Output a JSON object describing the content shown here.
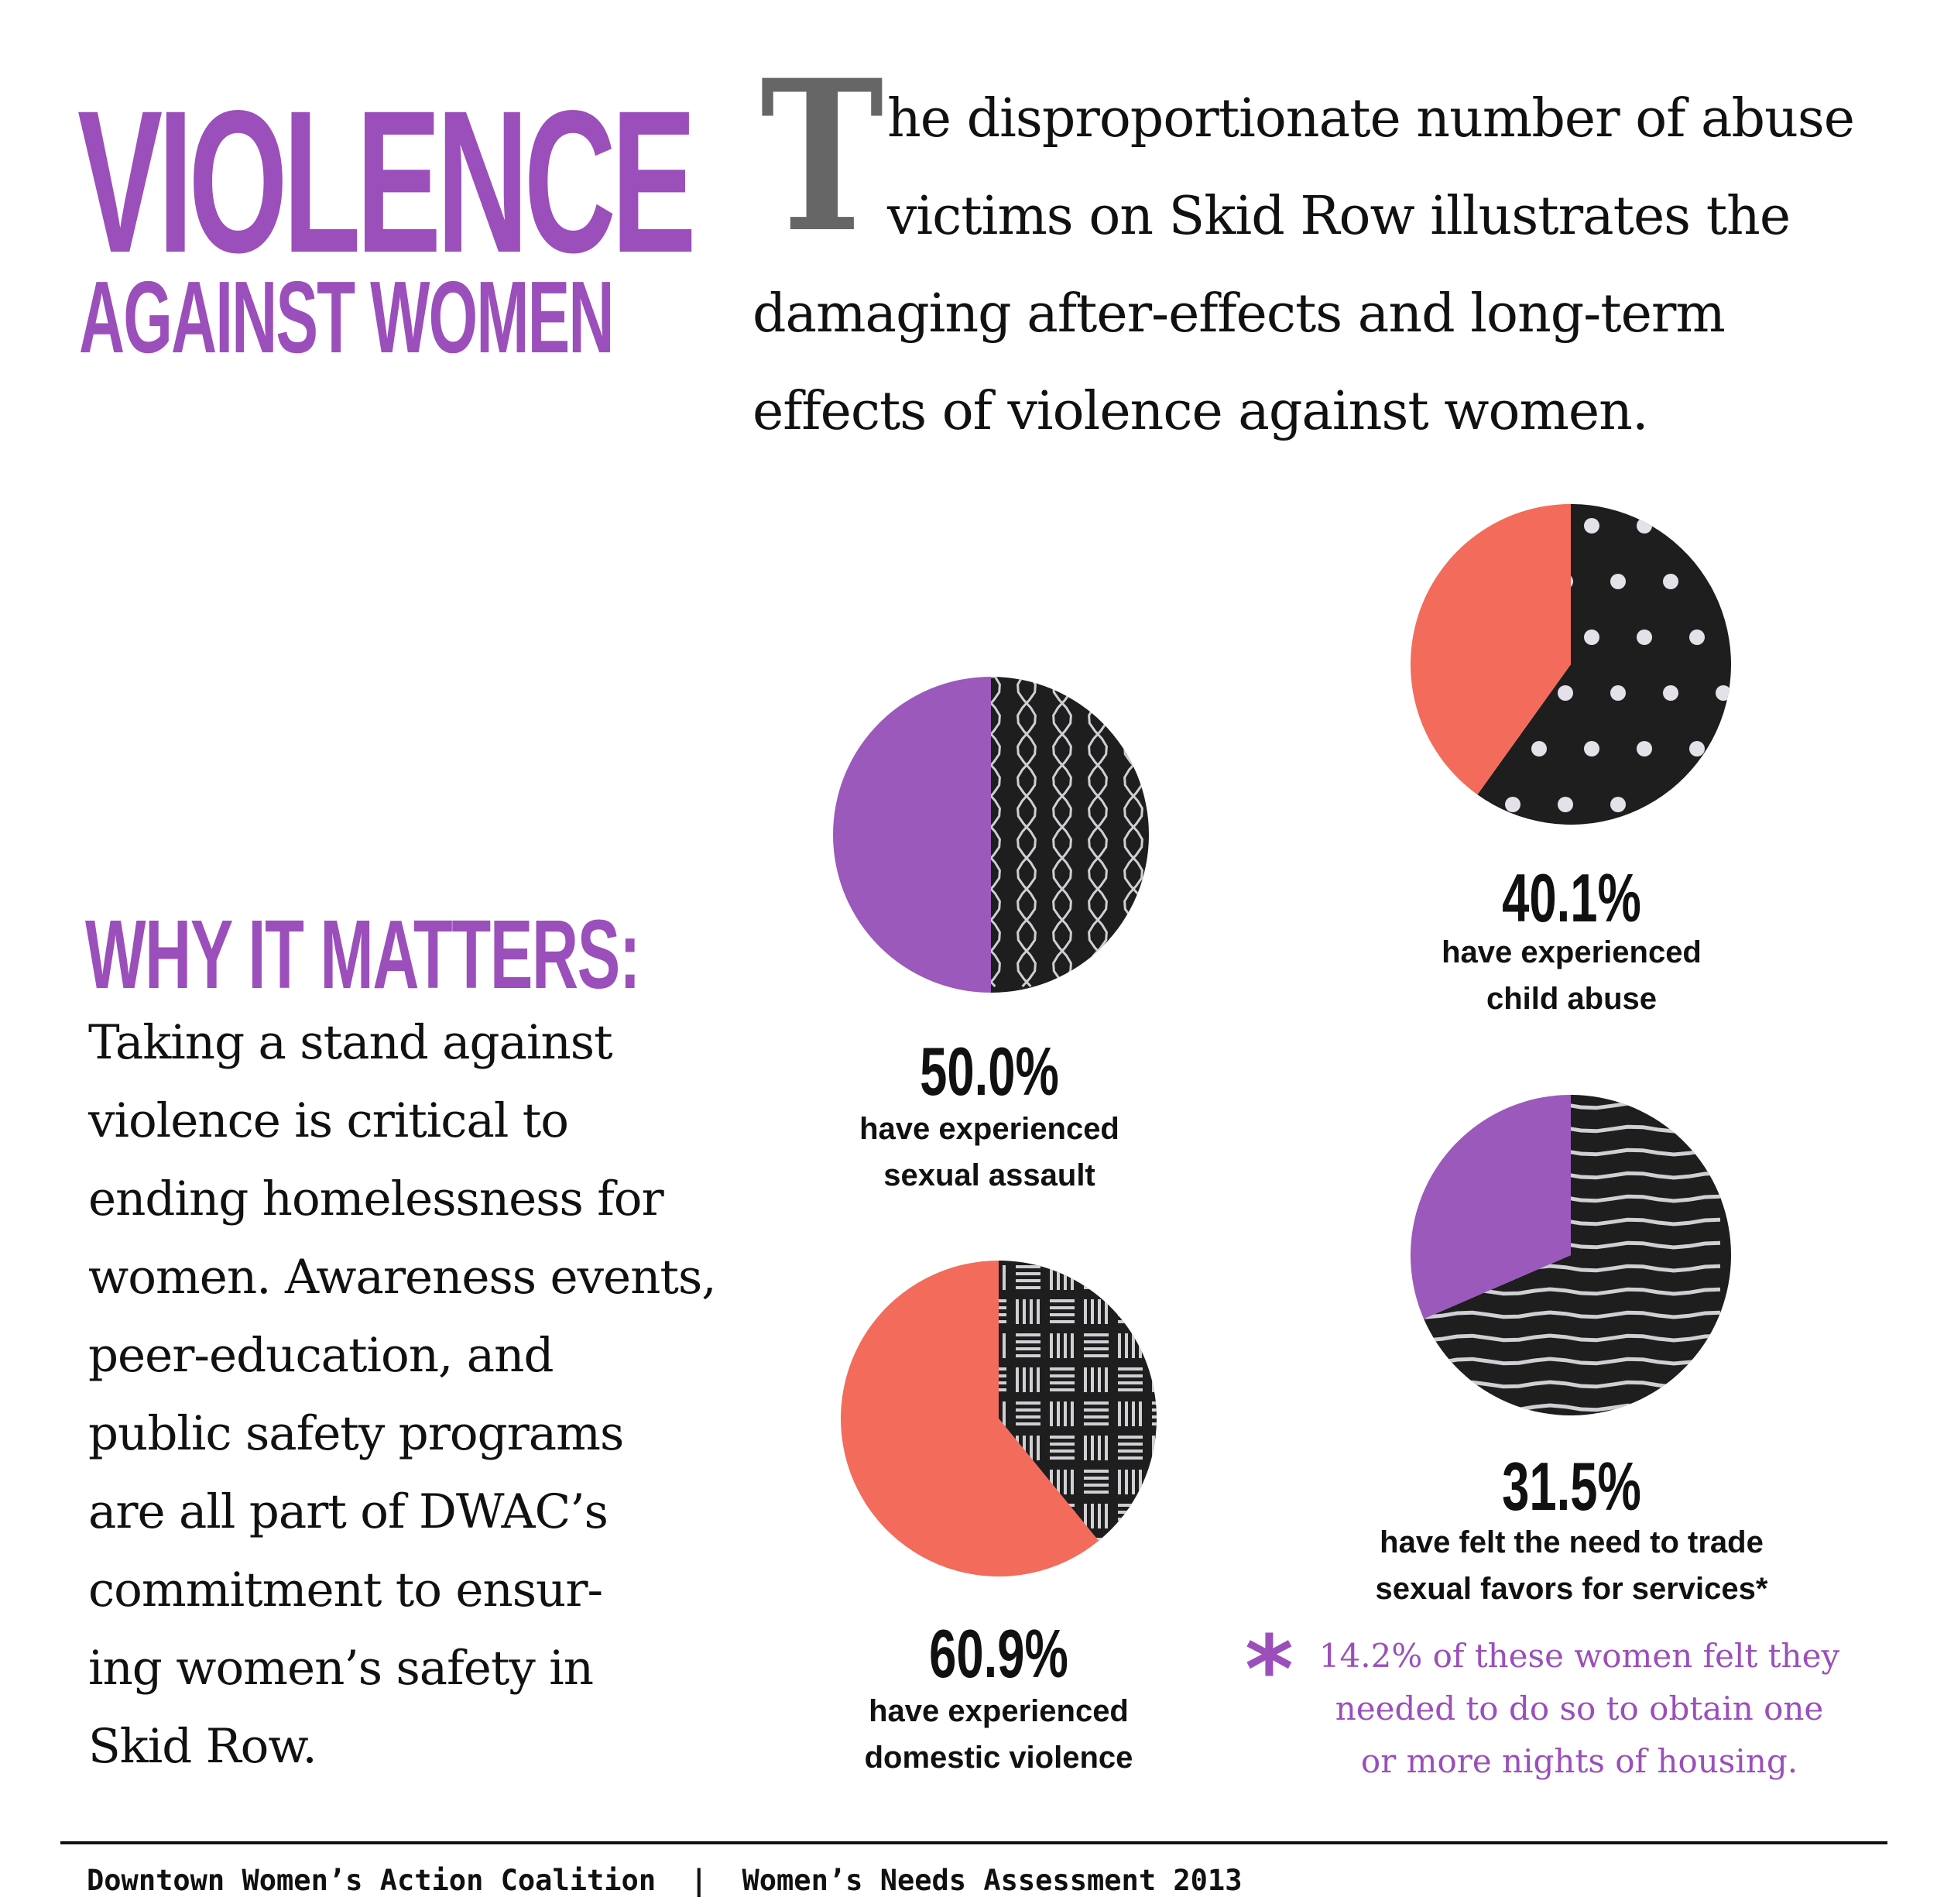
{
  "title": {
    "main": "VIOLENCE",
    "sub": "AGAINST WOMEN"
  },
  "intro": {
    "dropcap": "T",
    "lines": [
      "he disproportionate number of abuse",
      "victims on Skid Row illustrates the",
      "damaging after-effects and long-term",
      "effects of violence against women."
    ]
  },
  "why_it_matters": {
    "heading": "WHY IT MATTERS:",
    "lines": [
      "Taking a stand against",
      "violence is critical to",
      "ending homelessness for",
      "women. Awareness events,",
      "peer-education, and",
      "public safety programs",
      "are all part of DWAC’s",
      "commitment to ensur-",
      "ing women’s safety in",
      "Skid Row."
    ]
  },
  "chart_data": [
    {
      "type": "pie",
      "value_percent": 50.0,
      "label": "50.0%",
      "caption": [
        "have experienced",
        "sexual assault"
      ],
      "slice_color": "#9b59bb",
      "rest_color": "#1e1e1e",
      "pattern": "waves"
    },
    {
      "type": "pie",
      "value_percent": 40.1,
      "label": "40.1%",
      "caption": [
        "have experienced",
        "child abuse"
      ],
      "slice_color": "#f26b5b",
      "rest_color": "#1e1e1e",
      "pattern": "dots"
    },
    {
      "type": "pie",
      "value_percent": 60.9,
      "label": "60.9%",
      "caption": [
        "have experienced",
        "domestic violence"
      ],
      "slice_color": "#f26b5b",
      "rest_color": "#1e1e1e",
      "pattern": "basketweave"
    },
    {
      "type": "pie",
      "value_percent": 31.5,
      "label": "31.5%",
      "caption": [
        "have felt the need to trade",
        "sexual favors for services*"
      ],
      "slice_color": "#9b59bb",
      "rest_color": "#1e1e1e",
      "pattern": "stripes"
    }
  ],
  "footnote": {
    "asterisk": "*",
    "lines": [
      "14.2% of these women felt they",
      "needed to do so to obtain one",
      "or more nights of housing."
    ]
  },
  "footer": {
    "text": "Downtown Women’s Action Coalition  |  Women’s Needs Assessment 2013"
  },
  "colors": {
    "purple": "#9b4fbb",
    "coral": "#f26b5b",
    "dark": "#1e1e1e",
    "gray_dropcap": "#666666"
  }
}
